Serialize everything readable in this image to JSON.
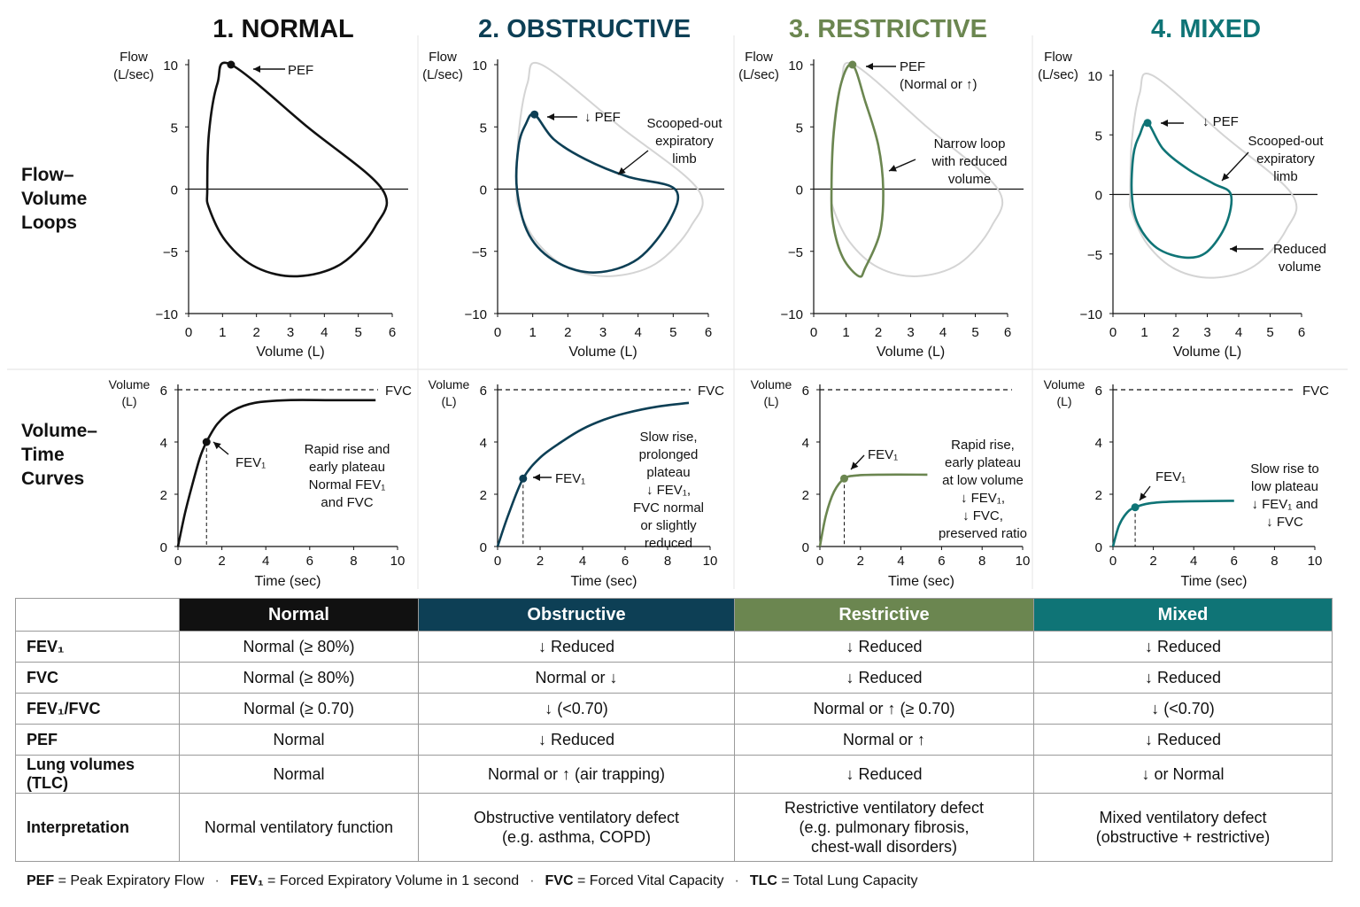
{
  "colors": {
    "normal": "#111111",
    "obstructive": "#0d3f55",
    "restrictive": "#6b8650",
    "mixed": "#0f7476",
    "ghost": "#d4d4d4"
  },
  "row_labels": {
    "flow_volume": [
      "Flow–",
      "Volume",
      "Loops"
    ],
    "volume_time": [
      "Volume–",
      "Time",
      "Curves"
    ]
  },
  "chart_data": [
    {
      "type": "line",
      "panel": "flow_volume",
      "title": "1. NORMAL",
      "ylabel": [
        "Flow",
        "(L/sec)"
      ],
      "xlabel": "Volume (L)",
      "xlim": [
        0,
        6
      ],
      "ylim": [
        -10,
        10
      ],
      "xticks": [
        "0",
        "1",
        "2",
        "3",
        "4",
        "5",
        "6"
      ],
      "yticks": [
        "10",
        "5",
        "0",
        "−5",
        "−10"
      ],
      "series": [
        {
          "values": [
            [
              0.55,
              0
            ],
            [
              0.6,
              4.5
            ],
            [
              0.85,
              8.5
            ],
            [
              1.25,
              10
            ],
            [
              3.5,
              5
            ],
            [
              5.7,
              0
            ],
            [
              5.5,
              -3
            ],
            [
              4.5,
              -6
            ],
            [
              3.2,
              -7.0
            ],
            [
              2.0,
              -6.3
            ],
            [
              1.1,
              -4.2
            ],
            [
              0.6,
              -1.5
            ],
            [
              0.55,
              0
            ]
          ]
        }
      ],
      "peak": {
        "x": 1.25,
        "y": 10
      },
      "annotations": [
        {
          "text": [
            "PEF"
          ]
        }
      ]
    },
    {
      "type": "line",
      "panel": "flow_volume",
      "title": "2. OBSTRUCTIVE",
      "ylabel": [
        "Flow",
        "(L/sec)"
      ],
      "xlabel": "Volume (L)",
      "xlim": [
        0,
        6
      ],
      "ylim": [
        -10,
        10
      ],
      "xticks": [
        "0",
        "1",
        "2",
        "3",
        "4",
        "5",
        "6"
      ],
      "yticks": [
        "10",
        "5",
        "0",
        "−5",
        "−10"
      ],
      "series": [
        {
          "values": [
            [
              0.55,
              0
            ],
            [
              0.6,
              3.5
            ],
            [
              0.8,
              5.2
            ],
            [
              1.05,
              6
            ],
            [
              1.6,
              4
            ],
            [
              2.5,
              2.4
            ],
            [
              3.7,
              1.0
            ],
            [
              5.05,
              0
            ],
            [
              4.9,
              -2.5
            ],
            [
              4.0,
              -5.6
            ],
            [
              2.8,
              -6.7
            ],
            [
              1.7,
              -5.9
            ],
            [
              0.9,
              -3.7
            ],
            [
              0.55,
              0
            ]
          ]
        }
      ],
      "peak": {
        "x": 1.05,
        "y": 6
      },
      "annotations": [
        {
          "text": [
            "↓ PEF"
          ]
        },
        {
          "text": [
            "Scooped-out",
            "expiratory",
            "limb"
          ]
        }
      ]
    },
    {
      "type": "line",
      "panel": "flow_volume",
      "title": "3. RESTRICTIVE",
      "ylabel": [
        "Flow",
        "(L/sec)"
      ],
      "xlabel": "Volume (L)",
      "xlim": [
        0,
        6
      ],
      "ylim": [
        -10,
        10
      ],
      "xticks": [
        "0",
        "1",
        "2",
        "3",
        "4",
        "5",
        "6"
      ],
      "yticks": [
        "10",
        "5",
        "0",
        "−5",
        "−10"
      ],
      "series": [
        {
          "values": [
            [
              0.55,
              0
            ],
            [
              0.62,
              4.5
            ],
            [
              0.85,
              8.5
            ],
            [
              1.2,
              10
            ],
            [
              1.6,
              7
            ],
            [
              2.0,
              3.5
            ],
            [
              2.15,
              0
            ],
            [
              2.05,
              -3.5
            ],
            [
              1.6,
              -6.3
            ],
            [
              1.4,
              -7.0
            ],
            [
              0.9,
              -5.5
            ],
            [
              0.6,
              -2.8
            ],
            [
              0.55,
              0
            ]
          ]
        }
      ],
      "peak": {
        "x": 1.2,
        "y": 10
      },
      "annotations": [
        {
          "text": [
            "PEF",
            "(Normal or ↑)"
          ]
        },
        {
          "text": [
            "Narrow loop",
            "with reduced",
            "volume"
          ]
        }
      ]
    },
    {
      "type": "line",
      "panel": "flow_volume",
      "title": "4. MIXED",
      "ylabel": [
        "Flow",
        "(L/sec)"
      ],
      "xlabel": "Volume (L)",
      "xlim": [
        0,
        6
      ],
      "ylim": [
        -10,
        10
      ],
      "xticks": [
        "0",
        "1",
        "2",
        "3",
        "4",
        "5",
        "6"
      ],
      "yticks": [
        "10",
        "5",
        "0",
        "−5",
        "−10"
      ],
      "series": [
        {
          "values": [
            [
              0.6,
              0
            ],
            [
              0.65,
              3.3
            ],
            [
              0.85,
              5.0
            ],
            [
              1.1,
              6
            ],
            [
              1.6,
              3.8
            ],
            [
              2.4,
              2.1
            ],
            [
              3.2,
              0.9
            ],
            [
              3.75,
              0
            ],
            [
              3.6,
              -2.5
            ],
            [
              3.0,
              -4.8
            ],
            [
              2.3,
              -5.3
            ],
            [
              1.4,
              -4.5
            ],
            [
              0.8,
              -2.5
            ],
            [
              0.6,
              0
            ]
          ]
        }
      ],
      "peak": {
        "x": 1.1,
        "y": 6
      },
      "annotations": [
        {
          "text": [
            "↓ PEF"
          ]
        },
        {
          "text": [
            "Scooped-out",
            "expiratory",
            "limb"
          ]
        },
        {
          "text": [
            "Reduced",
            "volume"
          ]
        }
      ]
    },
    {
      "type": "line",
      "panel": "volume_time",
      "ylabel": [
        "Volume",
        "(L)"
      ],
      "xlabel": "Time (sec)",
      "xlim": [
        0,
        10
      ],
      "ylim": [
        0,
        6
      ],
      "xticks": [
        "0",
        "2",
        "4",
        "6",
        "8",
        "10"
      ],
      "yticks": [
        "6",
        "4",
        "2",
        "0"
      ],
      "fvc_label": "FVC",
      "series": [
        {
          "values": [
            [
              0,
              0
            ],
            [
              0.3,
              1.2
            ],
            [
              0.6,
              2.2
            ],
            [
              1.0,
              3.4
            ],
            [
              1.3,
              4.0
            ],
            [
              1.8,
              4.7
            ],
            [
              2.5,
              5.2
            ],
            [
              3.5,
              5.5
            ],
            [
              5,
              5.6
            ],
            [
              7,
              5.6
            ],
            [
              9,
              5.6
            ]
          ]
        }
      ],
      "fev1": {
        "x": 1.3,
        "y": 4.0,
        "label": "FEV₁"
      },
      "annotations": [
        {
          "text": [
            "Rapid rise and",
            "early plateau",
            "Normal FEV₁",
            "and FVC"
          ]
        }
      ]
    },
    {
      "type": "line",
      "panel": "volume_time",
      "ylabel": [
        "Volume",
        "(L)"
      ],
      "xlabel": "Time (sec)",
      "xlim": [
        0,
        10
      ],
      "ylim": [
        0,
        6
      ],
      "xticks": [
        "0",
        "2",
        "4",
        "6",
        "8",
        "10"
      ],
      "yticks": [
        "6",
        "4",
        "2",
        "0"
      ],
      "fvc_label": "FVC",
      "series": [
        {
          "values": [
            [
              0,
              0
            ],
            [
              0.5,
              1.2
            ],
            [
              1.2,
              2.6
            ],
            [
              2,
              3.4
            ],
            [
              3,
              4.0
            ],
            [
              4,
              4.5
            ],
            [
              5,
              4.85
            ],
            [
              6,
              5.1
            ],
            [
              7.5,
              5.35
            ],
            [
              9,
              5.5
            ]
          ]
        }
      ],
      "fev1": {
        "x": 1.2,
        "y": 2.6,
        "label": "FEV₁"
      },
      "annotations": [
        {
          "text": [
            "Slow rise,",
            "prolonged",
            "plateau",
            "↓ FEV₁,",
            "FVC normal",
            "or slightly",
            "reduced"
          ]
        }
      ]
    },
    {
      "type": "line",
      "panel": "volume_time",
      "ylabel": [
        "Volume",
        "(L)"
      ],
      "xlabel": "Time (sec)",
      "xlim": [
        0,
        10
      ],
      "ylim": [
        0,
        6
      ],
      "xticks": [
        "0",
        "2",
        "4",
        "6",
        "8",
        "10"
      ],
      "yticks": [
        "6",
        "4",
        "2",
        "0"
      ],
      "fvc_label": "",
      "series": [
        {
          "values": [
            [
              0,
              0
            ],
            [
              0.3,
              1.2
            ],
            [
              0.7,
              2.1
            ],
            [
              1.2,
              2.6
            ],
            [
              1.8,
              2.72
            ],
            [
              3,
              2.75
            ],
            [
              5.3,
              2.75
            ]
          ]
        }
      ],
      "fev1": {
        "x": 1.2,
        "y": 2.6,
        "label": "FEV₁"
      },
      "annotations": [
        {
          "text": [
            "Rapid rise,",
            "early plateau",
            "at low volume",
            "↓ FEV₁,",
            "↓ FVC,",
            "preserved ratio"
          ]
        }
      ]
    },
    {
      "type": "line",
      "panel": "volume_time",
      "ylabel": [
        "Volume",
        "(L)"
      ],
      "xlabel": "Time (sec)",
      "xlim": [
        0,
        10
      ],
      "ylim": [
        0,
        6
      ],
      "xticks": [
        "0",
        "2",
        "4",
        "6",
        "8",
        "10"
      ],
      "yticks": [
        "6",
        "4",
        "2",
        "0"
      ],
      "fvc_label": "FVC",
      "series": [
        {
          "values": [
            [
              0,
              0
            ],
            [
              0.3,
              0.8
            ],
            [
              0.7,
              1.3
            ],
            [
              1.1,
              1.5
            ],
            [
              1.8,
              1.65
            ],
            [
              3,
              1.72
            ],
            [
              6,
              1.75
            ]
          ]
        }
      ],
      "fev1": {
        "x": 1.1,
        "y": 1.5,
        "label": "FEV₁"
      },
      "annotations": [
        {
          "text": [
            "Slow rise to",
            "low plateau",
            "↓ FEV₁ and",
            "↓ FVC"
          ]
        }
      ]
    }
  ],
  "table": {
    "headers": [
      "Normal",
      "Obstructive",
      "Restrictive",
      "Mixed"
    ],
    "header_colors": [
      "#111111",
      "#0d3f55",
      "#6b8650",
      "#0f7476"
    ],
    "rows": [
      {
        "label": "FEV₁",
        "cells": [
          "Normal (≥ 80%)",
          "↓ Reduced",
          "↓ Reduced",
          "↓ Reduced"
        ]
      },
      {
        "label": "FVC",
        "cells": [
          "Normal (≥ 80%)",
          "Normal or ↓",
          "↓ Reduced",
          "↓ Reduced"
        ]
      },
      {
        "label": "FEV₁/FVC",
        "cells": [
          "Normal (≥ 0.70)",
          "↓ (<0.70)",
          "Normal or ↑ (≥ 0.70)",
          "↓ (<0.70)"
        ]
      },
      {
        "label": "PEF",
        "cells": [
          "Normal",
          "↓ Reduced",
          "Normal or ↑",
          "↓ Reduced"
        ]
      },
      {
        "label": "Lung volumes (TLC)",
        "cells": [
          "Normal",
          "Normal or ↑ (air trapping)",
          "↓ Reduced",
          "↓ or Normal"
        ]
      }
    ],
    "interpretation": {
      "label": "Interpretation",
      "cells": [
        [
          "Normal ventilatory function"
        ],
        [
          "Obstructive ventilatory defect",
          "(e.g. asthma, COPD)"
        ],
        [
          "Restrictive ventilatory defect",
          "(e.g. pulmonary fibrosis,",
          "chest-wall disorders)"
        ],
        [
          "Mixed ventilatory defect",
          "(obstructive + restrictive)"
        ]
      ]
    }
  },
  "footer": [
    {
      "abbr": "PEF",
      "def": "= Peak Expiratory Flow"
    },
    {
      "abbr": "FEV₁",
      "def": "= Forced Expiratory Volume in 1 second"
    },
    {
      "abbr": "FVC",
      "def": "= Forced Vital Capacity"
    },
    {
      "abbr": "TLC",
      "def": "= Total Lung Capacity"
    }
  ],
  "footer_separator": "·"
}
